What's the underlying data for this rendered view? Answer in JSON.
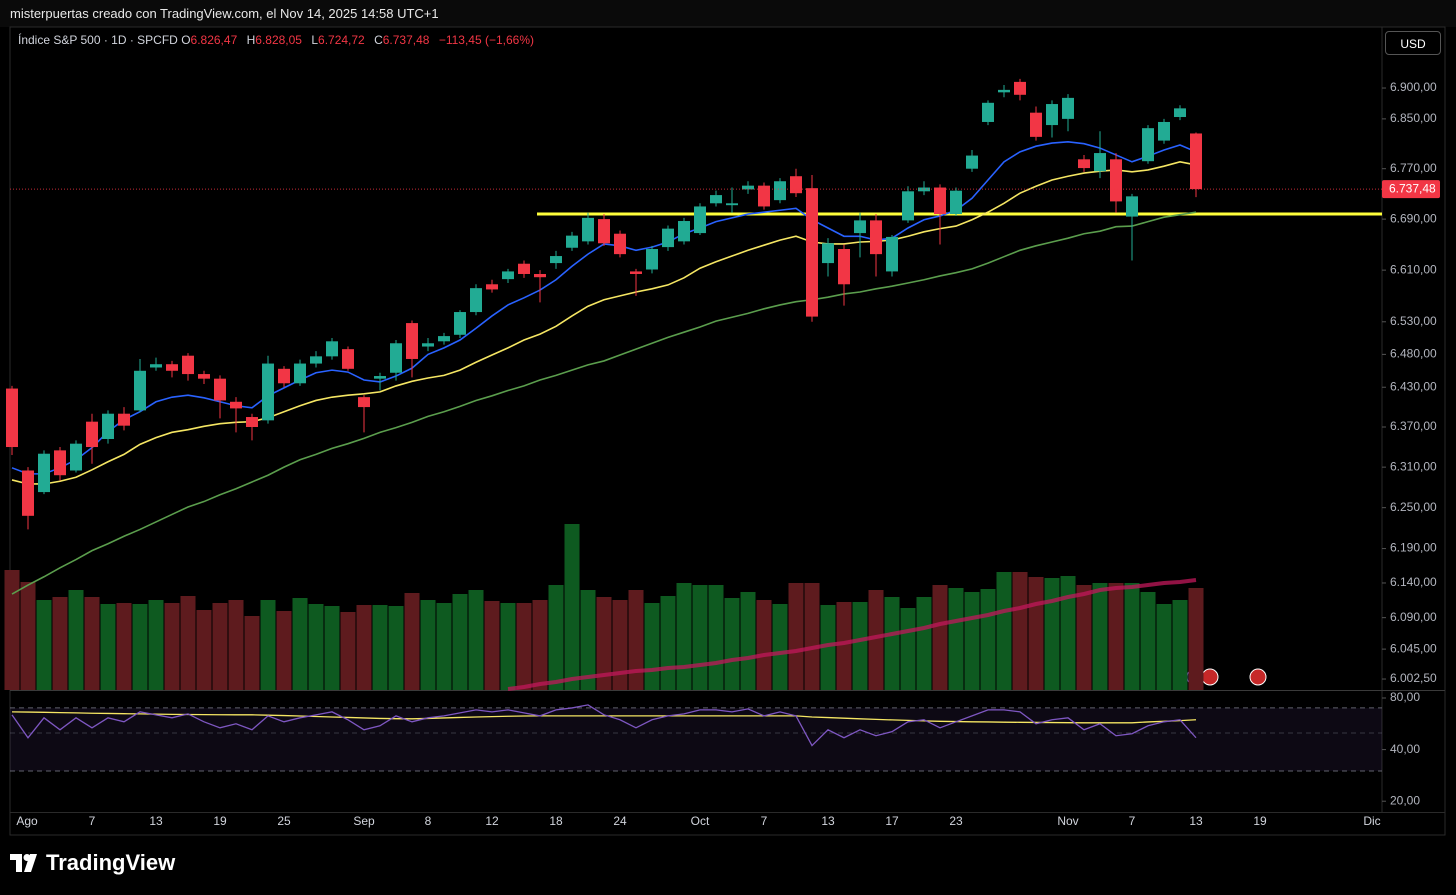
{
  "header": {
    "text": "misterpuertas creado con TradingView.com, el Nov 14, 2025 14:58 UTC+1"
  },
  "legend": {
    "symbol": "Índice S&P 500 · 1D · SPCFD",
    "o": "O",
    "o_value": "6.826,47",
    "h": "H",
    "h_value": "6.828,05",
    "l": "L",
    "l_value": "6.724,72",
    "c": "C",
    "c_value": "6.737,48",
    "change": "−113,45 (−1,66%)"
  },
  "currency": "USD",
  "footer": {
    "brand": "TradingView"
  },
  "chart_data": [
    {
      "type": "candlestick",
      "log": true,
      "ylim": [
        5987,
        7000
      ],
      "yticks": [
        {
          "value": 6002.5,
          "label": "6.002,50"
        },
        {
          "value": 6045,
          "label": "6.045,00"
        },
        {
          "value": 6090,
          "label": "6.090,00"
        },
        {
          "value": 6140,
          "label": "6.140,00"
        },
        {
          "value": 6190,
          "label": "6.190,00"
        },
        {
          "value": 6250,
          "label": "6.250,00"
        },
        {
          "value": 6310,
          "label": "6.310,00"
        },
        {
          "value": 6370,
          "label": "6.370,00"
        },
        {
          "value": 6430,
          "label": "6.430,00"
        },
        {
          "value": 6480,
          "label": "6.480,00"
        },
        {
          "value": 6530,
          "label": "6.530,00"
        },
        {
          "value": 6610,
          "label": "6.610,00"
        },
        {
          "value": 6690,
          "label": "6.690,00"
        },
        {
          "value": 6770,
          "label": "6.770,00"
        },
        {
          "value": 6850,
          "label": "6.850,00"
        },
        {
          "value": 6900,
          "label": "6.900,00"
        }
      ],
      "categories": [
        null,
        "Ago",
        null,
        null,
        null,
        "7",
        null,
        null,
        null,
        "13",
        null,
        null,
        null,
        "19",
        null,
        null,
        null,
        "25",
        null,
        null,
        null,
        null,
        "Sep",
        null,
        null,
        null,
        "8",
        null,
        null,
        null,
        "12",
        null,
        null,
        null,
        "18",
        null,
        null,
        null,
        "24",
        null,
        null,
        null,
        null,
        "Oct",
        null,
        null,
        null,
        "7",
        null,
        null,
        null,
        "13",
        null,
        null,
        null,
        "17",
        null,
        null,
        null,
        "23",
        null,
        null,
        null,
        null,
        null,
        null,
        "Nov",
        null,
        null,
        null,
        "7",
        null,
        null,
        null,
        "13",
        null,
        null,
        null,
        "19",
        null,
        null,
        null,
        null,
        null,
        null,
        "Dic"
      ],
      "open": [
        6428,
        6305,
        6273,
        6335,
        6305,
        6378,
        6352,
        6390,
        6395,
        6460,
        6465,
        6478,
        6450,
        6443,
        6408,
        6385,
        6380,
        6458,
        6436,
        6466,
        6477,
        6488,
        6415,
        6443,
        6452,
        6528,
        6492,
        6500,
        6510,
        6545,
        6588,
        6596,
        6620,
        6604,
        6621,
        6645,
        6655,
        6690,
        6667,
        6608,
        6611,
        6646,
        6655,
        6668,
        6715,
        6712,
        6737,
        6743,
        6720,
        6758,
        6739,
        6621,
        6643,
        6668,
        6688,
        6608,
        6688,
        6734,
        6740,
        6698,
        6770,
        6845,
        6893,
        6910,
        6860,
        6840,
        6850,
        6785,
        6766,
        6785,
        6694,
        6782,
        6815,
        6853,
        6826.47,
        null,
        null,
        null,
        null,
        null,
        null,
        null,
        null,
        null,
        null,
        null
      ],
      "high": [
        6432,
        6310,
        6335,
        6340,
        6350,
        6390,
        6395,
        6400,
        6473,
        6475,
        6470,
        6482,
        6455,
        6448,
        6415,
        6390,
        6478,
        6462,
        6472,
        6485,
        6505,
        6492,
        6418,
        6452,
        6502,
        6532,
        6505,
        6513,
        6548,
        6588,
        6595,
        6612,
        6625,
        6610,
        6640,
        6670,
        6700,
        6698,
        6672,
        6612,
        6648,
        6680,
        6692,
        6715,
        6735,
        6740,
        6750,
        6748,
        6755,
        6770,
        6760,
        6660,
        6650,
        6700,
        6698,
        6665,
        6742,
        6750,
        6745,
        6740,
        6800,
        6880,
        6905,
        6915,
        6870,
        6880,
        6890,
        6792,
        6830,
        6795,
        6730,
        6840,
        6850,
        6872,
        6828.05,
        null,
        null,
        null,
        null,
        null,
        null,
        null,
        null,
        null,
        null,
        null
      ],
      "low": [
        6328,
        6218,
        6270,
        6290,
        6302,
        6315,
        6345,
        6365,
        6392,
        6455,
        6445,
        6440,
        6435,
        6383,
        6362,
        6350,
        6375,
        6430,
        6432,
        6460,
        6472,
        6455,
        6362,
        6425,
        6440,
        6445,
        6485,
        6495,
        6505,
        6540,
        6575,
        6590,
        6598,
        6560,
        6612,
        6640,
        6650,
        6648,
        6630,
        6570,
        6605,
        6640,
        6650,
        6665,
        6710,
        6700,
        6730,
        6705,
        6715,
        6725,
        6530,
        6600,
        6555,
        6630,
        6600,
        6600,
        6684,
        6728,
        6650,
        6695,
        6765,
        6840,
        6885,
        6880,
        6815,
        6820,
        6830,
        6765,
        6755,
        6700,
        6625,
        6778,
        6810,
        6848,
        6724.72,
        null,
        null,
        null,
        null,
        null,
        null,
        null,
        null,
        null,
        null,
        null
      ],
      "close": [
        6340,
        6238,
        6330,
        6298,
        6345,
        6340,
        6390,
        6372,
        6455,
        6465,
        6455,
        6450,
        6443,
        6410,
        6398,
        6370,
        6466,
        6436,
        6466,
        6477,
        6500,
        6458,
        6400,
        6447,
        6497,
        6473,
        6497,
        6508,
        6545,
        6582,
        6580,
        6608,
        6604,
        6599,
        6632,
        6664,
        6692,
        6652,
        6635,
        6604,
        6643,
        6675,
        6687,
        6710,
        6728,
        6715,
        6743,
        6710,
        6750,
        6731,
        6538,
        6652,
        6588,
        6688,
        6635,
        6662,
        6734,
        6740,
        6698,
        6735,
        6791,
        6876,
        6897,
        6889,
        6821,
        6874,
        6884,
        6771,
        6795,
        6718,
        6726,
        6835,
        6845,
        6867,
        6737.48,
        null,
        null,
        null,
        null,
        null,
        null,
        null,
        null,
        null,
        null,
        null
      ],
      "up_color": "#22ab94",
      "down_color": "#f23645",
      "last_label": "6.737,48",
      "hline": {
        "value": 6698,
        "color": "#ffff3b"
      },
      "overlays": [
        {
          "color": "#2962ff",
          "values": [
            6309,
            6300,
            6300,
            6309,
            6321,
            6339,
            6363,
            6381,
            6393,
            6408,
            6415,
            6418,
            6414,
            6408,
            6402,
            6399,
            6417,
            6429,
            6441,
            6452,
            6456,
            6453,
            6441,
            6438,
            6447,
            6459,
            6480,
            6490,
            6502,
            6520,
            6539,
            6556,
            6567,
            6579,
            6595,
            6616,
            6635,
            6651,
            6648,
            6641,
            6646,
            6654,
            6667,
            6676,
            6686,
            6692,
            6698,
            6701,
            6704,
            6707,
            6689,
            6676,
            6663,
            6663,
            6657,
            6660,
            6676,
            6689,
            6695,
            6704,
            6723,
            6752,
            6781,
            6797,
            6806,
            6811,
            6813,
            6810,
            6803,
            6792,
            6781,
            6790,
            6800,
            6808,
            6797,
            null,
            null,
            null,
            null,
            null,
            null,
            null,
            null,
            null,
            null,
            null
          ]
        },
        {
          "color": "#f5e663",
          "values": [
            6291,
            6285,
            6285,
            6289,
            6295,
            6306,
            6318,
            6329,
            6344,
            6354,
            6362,
            6366,
            6371,
            6375,
            6377,
            6378,
            6384,
            6393,
            6402,
            6410,
            6415,
            6418,
            6420,
            6423,
            6432,
            6439,
            6444,
            6448,
            6456,
            6468,
            6479,
            6490,
            6502,
            6511,
            6523,
            6539,
            6554,
            6564,
            6570,
            6576,
            6581,
            6587,
            6598,
            6613,
            6623,
            6632,
            6641,
            6649,
            6657,
            6663,
            6654,
            6651,
            6651,
            6654,
            6655,
            6657,
            6663,
            6670,
            6675,
            6679,
            6689,
            6701,
            6715,
            6731,
            6742,
            6752,
            6758,
            6763,
            6766,
            6768,
            6765,
            6768,
            6774,
            6781,
            6776,
            null,
            null,
            null,
            null,
            null,
            null,
            null,
            null,
            null,
            null,
            null
          ]
        },
        {
          "color": "#5b9e4d",
          "values": [
            6124,
            6137,
            6149,
            6162,
            6174,
            6187,
            6197,
            6208,
            6218,
            6229,
            6240,
            6251,
            6259,
            6269,
            6278,
            6288,
            6298,
            6310,
            6321,
            6329,
            6338,
            6345,
            6353,
            6362,
            6369,
            6377,
            6386,
            6393,
            6401,
            6410,
            6417,
            6425,
            6432,
            6441,
            6448,
            6456,
            6464,
            6470,
            6479,
            6488,
            6497,
            6506,
            6514,
            6522,
            6531,
            6537,
            6543,
            6550,
            6556,
            6561,
            6564,
            6568,
            6573,
            6576,
            6581,
            6585,
            6590,
            6595,
            6601,
            6606,
            6612,
            6621,
            6631,
            6641,
            6648,
            6654,
            6660,
            6667,
            6671,
            6678,
            6679,
            6686,
            6693,
            6697,
            6701,
            null,
            null,
            null,
            null,
            null,
            null,
            null,
            null,
            null,
            null,
            null
          ]
        }
      ],
      "volume": {
        "vlim": [
          0,
          200
        ],
        "up_color": "#0e5a20",
        "down_color": "#5e1b1e",
        "ma_color": "#c2185b",
        "values": [
          120,
          108,
          90,
          93,
          100,
          93,
          86,
          87,
          86,
          90,
          87,
          94,
          80,
          87,
          90,
          74,
          90,
          79,
          92,
          86,
          84,
          78,
          85,
          85,
          84,
          97,
          90,
          87,
          96,
          100,
          89,
          87,
          87,
          90,
          105,
          166,
          100,
          93,
          90,
          100,
          87,
          94,
          107,
          105,
          105,
          92,
          98,
          90,
          86,
          107,
          107,
          85,
          88,
          88,
          100,
          93,
          82,
          93,
          105,
          102,
          98,
          101,
          118,
          118,
          113,
          112,
          114,
          105,
          107,
          107,
          107,
          98,
          86,
          90,
          102,
          null,
          null,
          null,
          null,
          null,
          null,
          null,
          null,
          null,
          null,
          null
        ],
        "ma": [
          null,
          null,
          null,
          null,
          null,
          null,
          null,
          null,
          null,
          null,
          null,
          null,
          null,
          null,
          null,
          null,
          null,
          null,
          null,
          null,
          null,
          null,
          null,
          null,
          null,
          null,
          null,
          null,
          null,
          null,
          null,
          1,
          3,
          6,
          8,
          11,
          13,
          15,
          17,
          19,
          20,
          22,
          23,
          25,
          27,
          30,
          32,
          35,
          37,
          39,
          42,
          45,
          47,
          50,
          53,
          56,
          59,
          62,
          66,
          69,
          72,
          75,
          79,
          82,
          86,
          89,
          93,
          96,
          100,
          102,
          103,
          105,
          107,
          108,
          110,
          null,
          null,
          null,
          null,
          null,
          null,
          null,
          null,
          null,
          null,
          null
        ]
      }
    },
    {
      "type": "line",
      "log": true,
      "ylim": [
        17.3,
        86.7
      ],
      "yticks": [
        {
          "value": 20,
          "label": "20,00"
        },
        {
          "value": 40,
          "label": "40,00"
        },
        {
          "value": 80,
          "label": "80,00"
        }
      ],
      "bands": [
        70,
        50,
        30
      ],
      "band_color": "#7e57c2",
      "series": [
        {
          "color": "#7e57c2",
          "values": [
            63.8,
            46.9,
            61.3,
            52.2,
            61.3,
            53.6,
            61.3,
            58.1,
            66.4,
            63.8,
            61.3,
            64.6,
            58.1,
            53.6,
            56.6,
            52.2,
            62.9,
            58.1,
            61.3,
            63.8,
            66.4,
            59.7,
            52.2,
            55.1,
            62.9,
            58.1,
            61.3,
            62.9,
            65.5,
            68.2,
            66.4,
            68.2,
            65.5,
            62.9,
            68.2,
            70.0,
            72.9,
            63.8,
            59.7,
            53.6,
            59.7,
            62.9,
            64.6,
            68.2,
            68.2,
            66.4,
            69.1,
            62.9,
            66.4,
            62.9,
            42.2,
            52.2,
            46.9,
            52.2,
            48.2,
            50.9,
            58.1,
            59.7,
            53.6,
            58.1,
            62.9,
            68.2,
            68.2,
            66.4,
            56.6,
            59.7,
            61.3,
            52.2,
            56.6,
            48.2,
            49.5,
            55.1,
            58.1,
            59.7,
            46.9,
            null,
            null,
            null,
            null,
            null,
            null,
            null,
            null,
            null,
            null,
            null
          ]
        },
        {
          "color": "#f5e663",
          "values": [
            66.4,
            66.2,
            66.0,
            65.7,
            65.5,
            65.2,
            65.0,
            64.8,
            64.6,
            64.4,
            64.2,
            64.1,
            64.0,
            63.9,
            63.8,
            63.8,
            63.5,
            63.2,
            62.8,
            62.4,
            62.0,
            61.6,
            61.2,
            60.8,
            60.6,
            60.5,
            60.8,
            61.2,
            61.6,
            62.0,
            62.3,
            62.6,
            62.8,
            62.9,
            62.9,
            62.9,
            62.9,
            62.9,
            62.9,
            62.9,
            62.9,
            62.9,
            62.9,
            62.9,
            62.9,
            62.9,
            62.9,
            62.9,
            62.9,
            62.9,
            62.0,
            61.5,
            61.0,
            60.5,
            60.0,
            59.6,
            59.2,
            58.8,
            58.5,
            58.3,
            58.1,
            58.0,
            57.8,
            57.7,
            57.6,
            57.5,
            57.4,
            57.3,
            57.3,
            57.3,
            57.3,
            58.0,
            58.5,
            59.0,
            59.7,
            null,
            null,
            null,
            null,
            null,
            null,
            null,
            null,
            null,
            null,
            null
          ]
        }
      ]
    }
  ]
}
